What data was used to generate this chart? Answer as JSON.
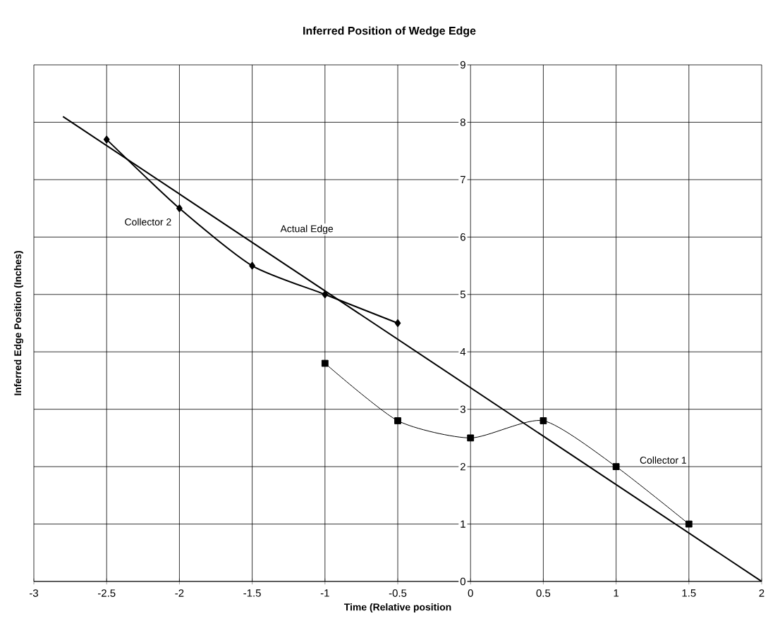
{
  "chart_data": {
    "type": "line",
    "title": "Inferred Position of Wedge Edge",
    "xlabel": "Time (Relative position",
    "ylabel": "Inferred Edge Position (Inches)",
    "series": [
      {
        "name": "Actual Edge",
        "color": "#000000",
        "x": [
          -2.8,
          2
        ],
        "values": [
          8.1,
          0
        ],
        "marker": "none"
      },
      {
        "name": "Collector 2",
        "color": "#000000",
        "x": [
          -2.5,
          -2,
          -1.5,
          -1,
          -0.5
        ],
        "values": [
          7.7,
          6.5,
          5.5,
          5,
          4.5
        ],
        "marker": "diamond"
      },
      {
        "name": "Collector 1",
        "color": "#000000",
        "x": [
          -1,
          -0.5,
          0,
          0.5,
          1,
          1.5
        ],
        "values": [
          3.8,
          2.8,
          2.5,
          2.8,
          2,
          1
        ],
        "marker": "square"
      }
    ],
    "xlim": [
      -3,
      2
    ],
    "ylim": [
      0,
      9
    ],
    "xticks": [
      -3,
      -2.5,
      -2,
      -1.5,
      -1,
      -0.5,
      0,
      0.5,
      1,
      1.5,
      2
    ],
    "yticks": [
      0,
      1,
      2,
      3,
      4,
      5,
      6,
      7,
      8,
      9
    ],
    "grid": true
  }
}
